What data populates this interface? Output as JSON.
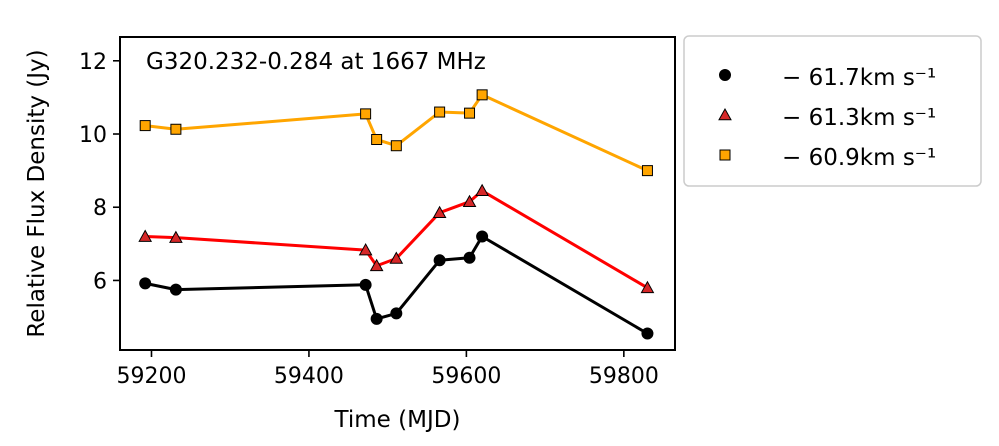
{
  "chart_data": {
    "type": "line",
    "title": "G320.232-0.284 at 1667 MHz",
    "xlabel": "Time (MJD)",
    "ylabel": "Relative Flux Density (Jy)",
    "xlim": [
      59160,
      59865
    ],
    "ylim": [
      4.1,
      12.65
    ],
    "xticks": [
      59200,
      59400,
      59600,
      59800
    ],
    "yticks": [
      6,
      8,
      10,
      12
    ],
    "legend_position": "outside-right",
    "series": [
      {
        "name": "− 61.7km s⁻¹",
        "color": "#000000",
        "marker": "circle",
        "marker_fill": "#000000",
        "x": [
          59192,
          59231,
          59472,
          59486,
          59511,
          59566,
          59604,
          59620,
          59830
        ],
        "y": [
          5.92,
          5.75,
          5.88,
          4.95,
          5.1,
          6.55,
          6.62,
          7.2,
          4.55
        ]
      },
      {
        "name": "− 61.3km s⁻¹",
        "color": "#ff0000",
        "marker": "triangle",
        "marker_fill": "#d62728",
        "x": [
          59192,
          59231,
          59472,
          59486,
          59511,
          59566,
          59604,
          59620,
          59830
        ],
        "y": [
          7.2,
          7.17,
          6.83,
          6.4,
          6.6,
          7.85,
          8.15,
          8.45,
          5.8
        ]
      },
      {
        "name": "− 60.9km s⁻¹",
        "color": "#ffa500",
        "marker": "square",
        "marker_fill": "#ffa500",
        "x": [
          59192,
          59231,
          59472,
          59486,
          59511,
          59566,
          59604,
          59620,
          59830
        ],
        "y": [
          10.23,
          10.13,
          10.55,
          9.85,
          9.68,
          10.6,
          10.57,
          11.07,
          9.0
        ]
      }
    ]
  }
}
